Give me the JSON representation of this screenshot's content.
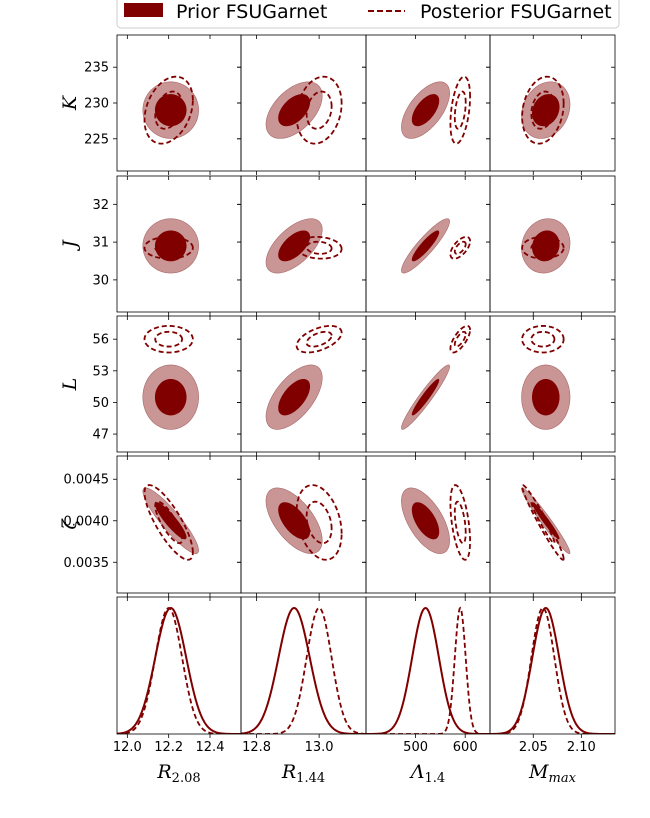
{
  "chart_data": {
    "type": "corner",
    "legend": {
      "placement": "top",
      "entries": [
        {
          "label": "Prior FSUGarnet",
          "style": "filled"
        },
        {
          "label": "Posterior FSUGarnet",
          "style": "dashed"
        }
      ]
    },
    "colors": {
      "dark": "#800000",
      "light": "#c99595",
      "dashed": "#800000"
    },
    "columns": [
      {
        "id": "R208",
        "label_main": "R",
        "label_sub": "2.08",
        "range": [
          11.95,
          12.55
        ],
        "ticks": [
          12.0,
          12.2,
          12.4
        ],
        "tick_labels": [
          "12.0",
          "12.2",
          "12.4"
        ],
        "prior": {
          "mean": 12.21,
          "sd": 0.075
        },
        "posterior": {
          "mean": 12.2,
          "sd": 0.065
        }
      },
      {
        "id": "R144",
        "label_main": "R",
        "label_sub": "1.44",
        "range": [
          12.75,
          13.15
        ],
        "ticks": [
          12.8,
          13.0
        ],
        "tick_labels": [
          "12.8",
          "13.0"
        ],
        "prior": {
          "mean": 12.92,
          "sd": 0.05
        },
        "posterior": {
          "mean": 13.0,
          "sd": 0.04
        }
      },
      {
        "id": "L14",
        "label_main": "Λ",
        "label_sub": "1.4",
        "range": [
          400,
          650
        ],
        "ticks": [
          500,
          600
        ],
        "tick_labels": [
          "500",
          "600"
        ],
        "prior": {
          "mean": 520,
          "sd": 27
        },
        "posterior": {
          "mean": 590,
          "sd": 11
        }
      },
      {
        "id": "Mmax",
        "label_main": "M",
        "label_sub": "max",
        "range": [
          2.005,
          2.135
        ],
        "ticks": [
          2.05,
          2.1
        ],
        "tick_labels": [
          "2.05",
          "2.10"
        ],
        "prior": {
          "mean": 2.063,
          "sd": 0.014
        },
        "posterior": {
          "mean": 2.06,
          "sd": 0.012
        }
      }
    ],
    "rows": [
      {
        "id": "K",
        "label_main": "K",
        "range": [
          220.5,
          239.5
        ],
        "ticks": [
          225,
          230,
          235
        ],
        "tick_labels": [
          "225",
          "230",
          "235"
        ],
        "prior": {
          "mean": 229,
          "sd": 2.2
        },
        "posterior": {
          "mean": 229,
          "sd": 2.6
        }
      },
      {
        "id": "J",
        "label_main": "J",
        "range": [
          29.15,
          32.75
        ],
        "ticks": [
          30,
          31,
          32
        ],
        "tick_labels": [
          "30",
          "31",
          "32"
        ],
        "prior": {
          "mean": 30.9,
          "sd": 0.4
        },
        "posterior": {
          "mean": 30.85,
          "sd": 0.16
        }
      },
      {
        "id": "L",
        "label_main": "L",
        "range": [
          45.3,
          58.2
        ],
        "ticks": [
          47,
          50,
          53,
          56
        ],
        "tick_labels": [
          "47",
          "50",
          "53",
          "56"
        ],
        "prior": {
          "mean": 50.5,
          "sd": 1.7
        },
        "posterior": {
          "mean": 56.0,
          "sd": 0.7
        }
      },
      {
        "id": "zeta",
        "label_main": "ζ",
        "range": [
          0.00313,
          0.00478
        ],
        "ticks": [
          0.0035,
          0.004,
          0.0045
        ],
        "tick_labels": [
          "0.0035",
          "0.0040",
          "0.0045"
        ],
        "prior": {
          "mean": 0.004,
          "sd": 0.00022
        },
        "posterior": {
          "mean": 0.00398,
          "sd": 0.00025
        }
      }
    ],
    "prior_corr": [
      [
        0.0,
        0.5,
        0.6,
        0.2
      ],
      [
        0.0,
        0.6,
        0.9,
        0.1
      ],
      [
        0.0,
        0.6,
        0.95,
        0.0
      ],
      [
        -0.9,
        -0.6,
        -0.6,
        -0.97
      ]
    ],
    "posterior_corr": [
      [
        0.3,
        0.2,
        0.4,
        0.2
      ],
      [
        0.0,
        -0.1,
        0.6,
        0.0
      ],
      [
        0.0,
        0.5,
        0.7,
        0.0
      ],
      [
        -0.8,
        -0.3,
        -0.5,
        -0.97
      ]
    ],
    "contour_levels_sigma": [
      1.0,
      1.8
    ]
  }
}
